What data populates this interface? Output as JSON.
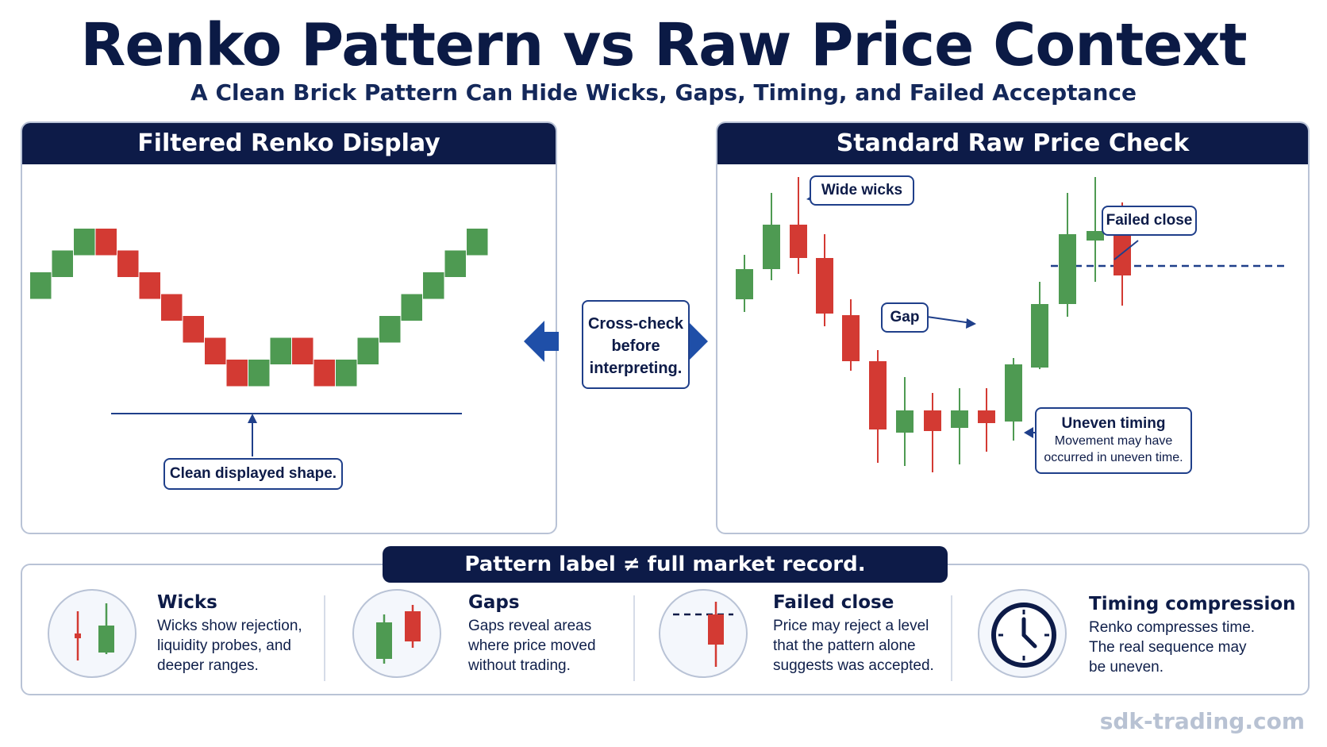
{
  "title": "Renko Pattern vs Raw Price Context",
  "subtitle": "A Clean Brick Pattern Can Hide Wicks, Gaps, Timing, and Failed Acceptance",
  "left_panel": {
    "header": "Filtered Renko Display",
    "callout": "Clean displayed shape.",
    "bricks": [
      "up",
      "up",
      "up",
      "down",
      "down",
      "down",
      "down",
      "down",
      "down",
      "down",
      "up",
      "up",
      "down",
      "down",
      "up",
      "up",
      "up",
      "up",
      "up",
      "up",
      "up"
    ]
  },
  "center": {
    "line1": "Cross-check",
    "line2": "before",
    "line3": "interpreting."
  },
  "right_panel": {
    "header": "Standard Raw Price Check",
    "wide_wicks": "Wide wicks",
    "failed_close": "Failed close",
    "gap": "Gap",
    "uneven_timing_title": "Uneven timing",
    "uneven_timing_line1": "Movement may have",
    "uneven_timing_line2": "occurred in uneven time."
  },
  "bottom": {
    "banner": "Pattern label ≠ full market record.",
    "features": [
      {
        "title": "Wicks",
        "lines": [
          "Wicks show rejection,",
          "liquidity probes, and",
          "deeper ranges."
        ],
        "icon": "wick-candles-icon"
      },
      {
        "title": "Gaps",
        "lines": [
          "Gaps reveal areas",
          "where price moved",
          "without trading."
        ],
        "icon": "gap-candles-icon"
      },
      {
        "title": "Failed close",
        "lines": [
          "Price may reject a level",
          "that the pattern alone",
          "suggests was accepted."
        ],
        "icon": "failed-close-icon"
      },
      {
        "title": "Timing compression",
        "lines": [
          "Renko compresses time.",
          "The real sequence may",
          "be uneven."
        ],
        "icon": "clock-icon"
      }
    ]
  },
  "watermark": "sdk-trading.com",
  "colors": {
    "navy": "#0d1b48",
    "green": "#4e9a52",
    "red": "#d33a33",
    "blue_line": "#1f3f8a"
  }
}
